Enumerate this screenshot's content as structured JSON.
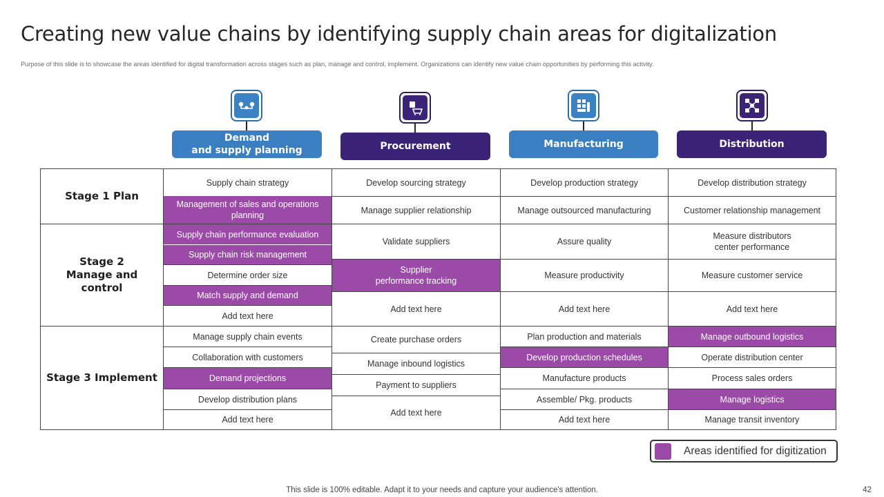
{
  "slide": {
    "title": "Creating new value chains by identifying supply chain areas for digitalization",
    "subtitle": "Purpose of this slide is to showcase the areas identified for digital transformation across stages such as plan, manage and control, implement.  Organizations can identify new value chain opportunities by performing this activity.",
    "footer": "This slide is 100% editable. Adapt it to your needs and capture your audience's attention.",
    "page_number": "42"
  },
  "colors": {
    "highlight": "#9c4aa8",
    "blue": "#3a7fc2",
    "navy": "#3b2478"
  },
  "columns": [
    {
      "label": "Demand\nand supply planning",
      "icon": "supply-chain-nodes-icon",
      "color": "blue"
    },
    {
      "label": "Procurement",
      "icon": "shopping-cart-icon",
      "color": "navy"
    },
    {
      "label": "Manufacturing",
      "icon": "factory-icon",
      "color": "blue"
    },
    {
      "label": "Distribution",
      "icon": "distribution-network-icon",
      "color": "navy"
    }
  ],
  "stages": [
    {
      "label": "Stage 1 Plan"
    },
    {
      "label": "Stage 2\nManage and control"
    },
    {
      "label": "Stage 3 Implement"
    }
  ],
  "table": {
    "demand": [
      {
        "text": "Supply chain strategy",
        "highlight": false
      },
      {
        "text": "Management  of sales and operations planning",
        "highlight": true
      },
      {
        "text": "Supply chain performance  evaluation",
        "highlight": true
      },
      {
        "text": "Supply chain risk management",
        "highlight": true
      },
      {
        "text": "Determine  order size",
        "highlight": false
      },
      {
        "text": "Match supply and demand",
        "highlight": true
      },
      {
        "text": "Add text here",
        "highlight": false
      },
      {
        "text": "Manage supply chain events",
        "highlight": false
      },
      {
        "text": "Collaboration  with customers",
        "highlight": false
      },
      {
        "text": "Demand projections",
        "highlight": true
      },
      {
        "text": "Develop  distribution plans",
        "highlight": false
      },
      {
        "text": "Add text here",
        "highlight": false
      }
    ],
    "procurement": [
      {
        "text": "Develop  sourcing strategy",
        "highlight": false
      },
      {
        "text": "Manage supplier relationship",
        "highlight": false
      },
      {
        "text": "Validate suppliers",
        "highlight": false
      },
      {
        "text": "Supplier\nperformance  tracking",
        "highlight": true
      },
      {
        "text": "Add text here",
        "highlight": false
      },
      {
        "text": "Create purchase orders",
        "highlight": false
      },
      {
        "text": "Manage inbound logistics",
        "highlight": false
      },
      {
        "text": "Payment to suppliers",
        "highlight": false
      },
      {
        "text": "Add text here",
        "highlight": false
      }
    ],
    "manufacturing": [
      {
        "text": "Develop  production strategy",
        "highlight": false
      },
      {
        "text": "Manage outsourced manufacturing",
        "highlight": false
      },
      {
        "text": "Assure quality",
        "highlight": false
      },
      {
        "text": "Measure productivity",
        "highlight": false
      },
      {
        "text": "Add text here",
        "highlight": false
      },
      {
        "text": "Plan production  and materials",
        "highlight": false
      },
      {
        "text": "Develop  production schedules",
        "highlight": true
      },
      {
        "text": "Manufacture  products",
        "highlight": false
      },
      {
        "text": "Assemble/ Pkg. products",
        "highlight": false
      },
      {
        "text": "Add text here",
        "highlight": false
      }
    ],
    "distribution": [
      {
        "text": "Develop  distribution strategy",
        "highlight": false
      },
      {
        "text": "Customer relationship  management",
        "highlight": false
      },
      {
        "text": "Measure distributors\ncenter performance",
        "highlight": false
      },
      {
        "text": "Measure customer service",
        "highlight": false
      },
      {
        "text": "Add text here",
        "highlight": false
      },
      {
        "text": "Manage outbound logistics",
        "highlight": true
      },
      {
        "text": "Operate distribution center",
        "highlight": false
      },
      {
        "text": "Process sales orders",
        "highlight": false
      },
      {
        "text": "Manage logistics",
        "highlight": true
      },
      {
        "text": "Manage transit inventory",
        "highlight": false
      }
    ]
  },
  "legend": {
    "label": "Areas identified for digitization"
  }
}
